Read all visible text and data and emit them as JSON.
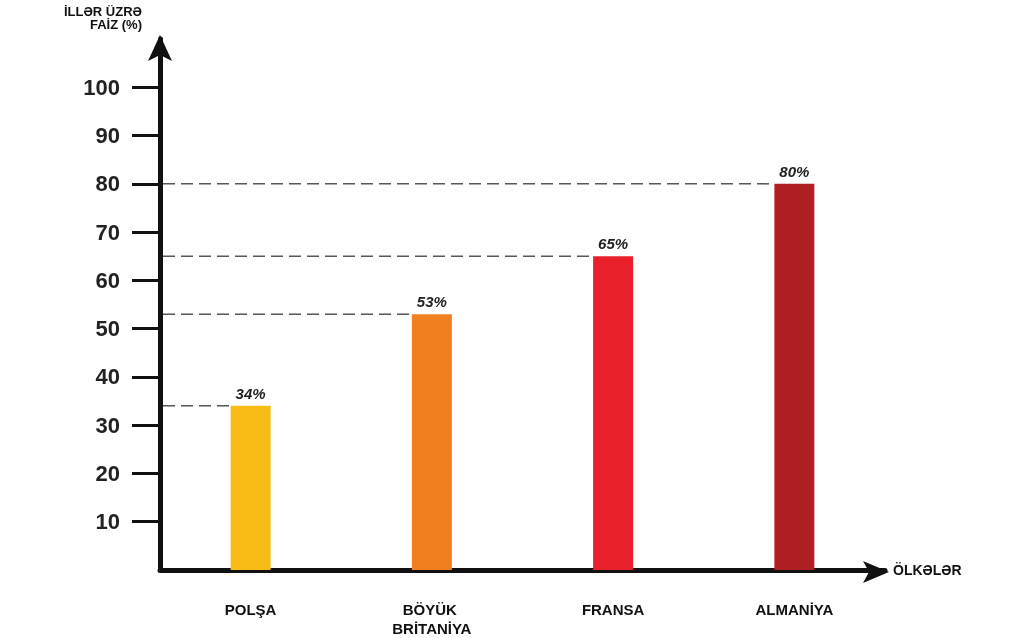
{
  "chart_data": {
    "type": "bar",
    "ylabel": "İLLƏR ÜZRƏ\nFAİZ (%)",
    "xlabel": "ÖLKƏLƏR",
    "categories": [
      "POLŞA",
      "BÖYÜK BRİTANİYA",
      "FRANSA",
      "ALMANİYA"
    ],
    "values": [
      34,
      53,
      65,
      80
    ],
    "colors": [
      "#f9bc15",
      "#f0801f",
      "#e8202a",
      "#b01f24"
    ],
    "value_labels": [
      "34%",
      "53%",
      "65%",
      "80%"
    ],
    "ylim": [
      0,
      110
    ],
    "yticks": [
      10,
      20,
      30,
      40,
      50,
      60,
      70,
      80,
      90,
      100
    ],
    "ref_lines": [
      {
        "axis": "y",
        "value": 34,
        "line_style": "dashed",
        "color": "#555555"
      },
      {
        "axis": "y",
        "value": 53,
        "line_style": "dashed",
        "color": "#555555"
      },
      {
        "axis": "y",
        "value": 65,
        "line_style": "dashed",
        "color": "#555555"
      },
      {
        "axis": "y",
        "value": 80,
        "line_style": "dashed",
        "color": "#555555"
      }
    ],
    "grid": false
  }
}
